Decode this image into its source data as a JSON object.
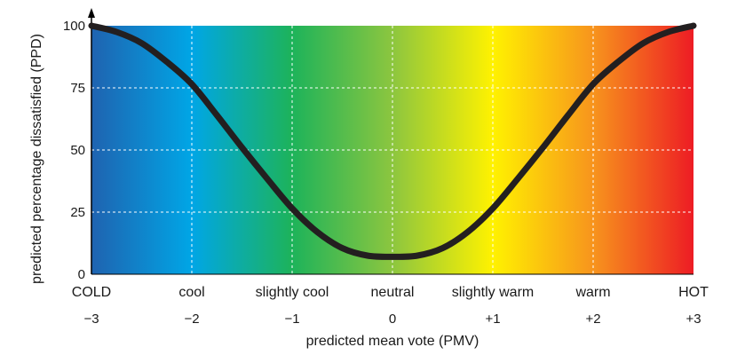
{
  "chart_data": {
    "type": "line",
    "title": "",
    "xlabel": "predicted mean vote (PMV)",
    "ylabel": "predicted percentage dissatisfied (PPD)",
    "xlim": [
      -3,
      3
    ],
    "ylim": [
      0,
      100
    ],
    "x_ticks": [
      {
        "value": -3,
        "label": "−3",
        "category": "COLD"
      },
      {
        "value": -2,
        "label": "−2",
        "category": "cool"
      },
      {
        "value": -1,
        "label": "−1",
        "category": "slightly cool"
      },
      {
        "value": 0,
        "label": "0",
        "category": "neutral"
      },
      {
        "value": 1,
        "label": "+1",
        "category": "slightly warm"
      },
      {
        "value": 2,
        "label": "+2",
        "category": "warm"
      },
      {
        "value": 3,
        "label": "+3",
        "category": "HOT"
      }
    ],
    "y_ticks": [
      {
        "value": 0,
        "label": "0"
      },
      {
        "value": 25,
        "label": "25"
      },
      {
        "value": 50,
        "label": "50"
      },
      {
        "value": 75,
        "label": "75"
      },
      {
        "value": 100,
        "label": "100"
      }
    ],
    "grid": true,
    "background_gradient": [
      "#1f63b0",
      "#00a6e6",
      "#1db35a",
      "#8cc63f",
      "#fff200",
      "#f7941d",
      "#ed1c24"
    ],
    "series": [
      {
        "color": "#231f20",
        "x": [
          -3,
          -2.75,
          -2.5,
          -2.25,
          -2,
          -1.75,
          -1.5,
          -1.25,
          -1,
          -0.75,
          -0.5,
          -0.25,
          0,
          0.25,
          0.5,
          0.75,
          1,
          1.25,
          1.5,
          1.75,
          2,
          2.25,
          2.5,
          2.75,
          3
        ],
        "y": [
          100,
          97.5,
          93,
          85.5,
          76.5,
          64,
          51,
          38.5,
          26.5,
          17,
          10.5,
          7.5,
          7,
          7.5,
          10.5,
          17,
          26.5,
          38.5,
          51,
          64,
          76.5,
          85.5,
          93,
          97.5,
          100
        ]
      }
    ]
  }
}
